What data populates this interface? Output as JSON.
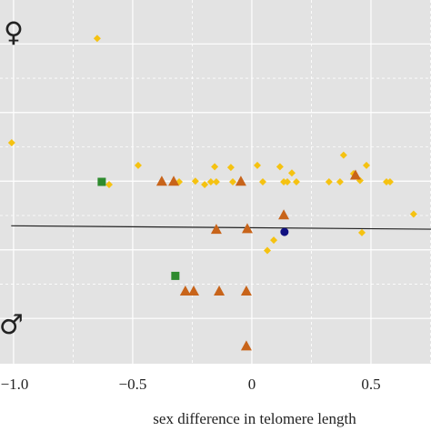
{
  "chart_data": {
    "type": "scatter",
    "xlabel": "sex difference in telomere length",
    "annotations": [
      {
        "text": "♀",
        "x": -1.0,
        "y": 4.15
      },
      {
        "text": "♂",
        "x": -1.01,
        "y": -0.11
      }
    ],
    "xlim": [
      -1.057,
      0.752
    ],
    "ylim": [
      -0.66,
      4.64
    ],
    "xticks": [
      {
        "value": -1,
        "label": "−1.0"
      },
      {
        "value": -0.5,
        "label": "−0.5"
      },
      0,
      0.5
    ],
    "xminor": [
      -0.75,
      -0.25,
      0.25,
      0.75
    ],
    "ygrid": [
      0,
      1,
      2,
      3,
      4
    ],
    "yminor": [
      0.5,
      1.5,
      2.5,
      3.5
    ],
    "grid": true,
    "trend": {
      "x": [
        -1.01,
        0.752
      ],
      "y": [
        1.35,
        1.3
      ],
      "color": "#222222"
    },
    "series": [
      {
        "marker": "diamond",
        "color": "#f5c211",
        "x": [
          -0.649,
          -1.008,
          -0.477,
          -0.599,
          -0.305,
          -0.237,
          -0.198,
          -0.172,
          -0.156,
          -0.149,
          -0.088,
          -0.08,
          0.023,
          0.046,
          0.118,
          0.134,
          0.149,
          0.168,
          0.187,
          0.324,
          0.37,
          0.385,
          0.427,
          0.481,
          0.454,
          0.565,
          0.58,
          0.679,
          0.462,
          0.092,
          0.065
        ],
        "y": [
          4.08,
          2.56,
          2.23,
          1.95,
          1.99,
          2.0,
          1.95,
          1.99,
          2.21,
          1.99,
          2.2,
          1.99,
          2.23,
          1.99,
          2.21,
          1.99,
          1.99,
          2.12,
          1.99,
          1.99,
          1.99,
          2.38,
          2.11,
          2.23,
          2.01,
          1.99,
          1.99,
          1.52,
          1.25,
          1.14,
          0.99
        ]
      },
      {
        "marker": "triangle",
        "color": "#c8641a",
        "x": [
          -0.378,
          -0.328,
          -0.046,
          0.435,
          -0.149,
          -0.019,
          0.134,
          -0.279,
          -0.244,
          -0.137,
          -0.023,
          -0.023
        ],
        "y": [
          2.0,
          2.0,
          2.0,
          2.09,
          1.3,
          1.31,
          1.51,
          0.4,
          0.4,
          0.4,
          0.4,
          -0.4
        ]
      },
      {
        "marker": "square",
        "color": "#2e8b2e",
        "x": [
          -0.63,
          -0.321
        ],
        "y": [
          1.99,
          0.62
        ]
      },
      {
        "marker": "circle",
        "color": "#101080",
        "x": [
          0.137
        ],
        "y": [
          1.26
        ]
      }
    ]
  }
}
